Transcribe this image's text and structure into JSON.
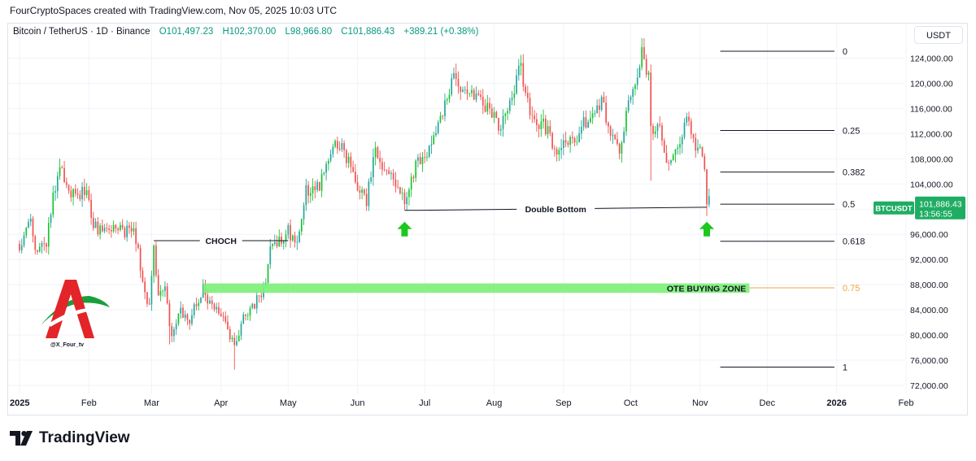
{
  "header": {
    "attribution": "FourCryptoSpaces created with TradingView.com, Nov 05, 2025 10:03 UTC",
    "symbol": "Bitcoin / TetherUS · 1D · Binance",
    "ohlc": {
      "o": "O101,497.23",
      "h": "H102,370.00",
      "l": "L98,966.80",
      "c": "C101,886.43",
      "change": "+389.21 (+0.38%)"
    },
    "currency_button": "USDT"
  },
  "chart_data": {
    "type": "candlestick",
    "title": "Bitcoin / TetherUS · 1D · Binance",
    "xlabel": "",
    "ylabel": "",
    "ylim": [
      72000,
      126000
    ],
    "x_range": [
      "2025-01-01",
      "2026-02-01"
    ],
    "y_ticks": [
      72000,
      76000,
      80000,
      84000,
      88000,
      92000,
      96000,
      100000,
      104000,
      108000,
      112000,
      116000,
      120000,
      124000
    ],
    "y_tick_labels": [
      "72,000.00",
      "76,000.00",
      "80,000.00",
      "84,000.00",
      "88,000.00",
      "92,000.00",
      "96,000.00",
      "100,000.00",
      "104,000.00",
      "108,000.00",
      "112,000.00",
      "116,000.00",
      "120,000.00",
      "124,000.00"
    ],
    "x_ticks": [
      {
        "date": "2025-01-01",
        "label": "2025"
      },
      {
        "date": "2025-02-01",
        "label": "Feb"
      },
      {
        "date": "2025-03-01",
        "label": "Mar"
      },
      {
        "date": "2025-04-01",
        "label": "Apr"
      },
      {
        "date": "2025-05-01",
        "label": "May"
      },
      {
        "date": "2025-06-01",
        "label": "Jun"
      },
      {
        "date": "2025-07-01",
        "label": "Jul"
      },
      {
        "date": "2025-08-01",
        "label": "Aug"
      },
      {
        "date": "2025-09-01",
        "label": "Sep"
      },
      {
        "date": "2025-10-01",
        "label": "Oct"
      },
      {
        "date": "2025-11-01",
        "label": "Nov"
      },
      {
        "date": "2025-12-01",
        "label": "Dec"
      },
      {
        "date": "2026-01-01",
        "label": "2026"
      },
      {
        "date": "2026-02-01",
        "label": "Feb"
      }
    ],
    "price_path": [
      [
        "2025-01-01",
        94500
      ],
      [
        "2025-01-06",
        98000
      ],
      [
        "2025-01-09",
        92800
      ],
      [
        "2025-01-13",
        94500
      ],
      [
        "2025-01-17",
        104000
      ],
      [
        "2025-01-20",
        106500
      ],
      [
        "2025-01-23",
        103000
      ],
      [
        "2025-01-27",
        101500
      ],
      [
        "2025-01-31",
        103500
      ],
      [
        "2025-02-03",
        97500
      ],
      [
        "2025-02-07",
        96500
      ],
      [
        "2025-02-12",
        97500
      ],
      [
        "2025-02-17",
        96000
      ],
      [
        "2025-02-21",
        98000
      ],
      [
        "2025-02-25",
        88000
      ],
      [
        "2025-02-28",
        84000
      ],
      [
        "2025-03-02",
        94500
      ],
      [
        "2025-03-04",
        86000
      ],
      [
        "2025-03-07",
        88500
      ],
      [
        "2025-03-10",
        79000
      ],
      [
        "2025-03-14",
        84000
      ],
      [
        "2025-03-18",
        82500
      ],
      [
        "2025-03-24",
        87500
      ],
      [
        "2025-03-28",
        84000
      ],
      [
        "2025-04-02",
        83000
      ],
      [
        "2025-04-07",
        78000
      ],
      [
        "2025-04-10",
        82000
      ],
      [
        "2025-04-15",
        84500
      ],
      [
        "2025-04-21",
        87500
      ],
      [
        "2025-04-23",
        93500
      ],
      [
        "2025-05-01",
        96500
      ],
      [
        "2025-05-05",
        94500
      ],
      [
        "2025-05-09",
        103000
      ],
      [
        "2025-05-15",
        103500
      ],
      [
        "2025-05-22",
        111000
      ],
      [
        "2025-05-26",
        109500
      ],
      [
        "2025-05-31",
        104000
      ],
      [
        "2025-06-05",
        101500
      ],
      [
        "2025-06-09",
        110000
      ],
      [
        "2025-06-13",
        105500
      ],
      [
        "2025-06-17",
        104500
      ],
      [
        "2025-06-22",
        100800
      ],
      [
        "2025-06-27",
        107000
      ],
      [
        "2025-07-03",
        109000
      ],
      [
        "2025-07-10",
        116500
      ],
      [
        "2025-07-14",
        121000
      ],
      [
        "2025-07-18",
        118500
      ],
      [
        "2025-07-24",
        118200
      ],
      [
        "2025-07-31",
        115500
      ],
      [
        "2025-08-03",
        113000
      ],
      [
        "2025-08-08",
        117000
      ],
      [
        "2025-08-13",
        123500
      ],
      [
        "2025-08-15",
        117500
      ],
      [
        "2025-08-20",
        114000
      ],
      [
        "2025-08-24",
        113000
      ],
      [
        "2025-08-29",
        108500
      ],
      [
        "2025-09-02",
        111000
      ],
      [
        "2025-09-07",
        111500
      ],
      [
        "2025-09-13",
        115500
      ],
      [
        "2025-09-18",
        116800
      ],
      [
        "2025-09-22",
        112500
      ],
      [
        "2025-09-26",
        109500
      ],
      [
        "2025-10-01",
        118000
      ],
      [
        "2025-10-06",
        124800
      ],
      [
        "2025-10-09",
        121500
      ],
      [
        "2025-10-10",
        112500
      ],
      [
        "2025-10-14",
        113000
      ],
      [
        "2025-10-17",
        107500
      ],
      [
        "2025-10-21",
        108500
      ],
      [
        "2025-10-26",
        114500
      ],
      [
        "2025-10-28",
        113000
      ],
      [
        "2025-10-30",
        110000
      ],
      [
        "2025-11-01",
        110500
      ],
      [
        "2025-11-03",
        107000
      ],
      [
        "2025-11-04",
        101500
      ],
      [
        "2025-11-05",
        101886.43
      ]
    ],
    "last_price_label": "BTCUSDT",
    "last_price": "101,886.43",
    "countdown": "13:56:55",
    "annotations": {
      "choch": {
        "label": "CHOCH",
        "price": 95000,
        "from": "2025-03-02",
        "to": "2025-05-01"
      },
      "double_bottom": {
        "label": "Double Bottom",
        "price_from": 99800,
        "price_to": 100300,
        "from": "2025-06-22",
        "to": "2025-11-04"
      },
      "ote_zone": {
        "label": "OTE BUYING ZONE",
        "price_top": 88200,
        "price_bottom": 86700,
        "from": "2025-03-24",
        "to": "2025-11-23"
      }
    },
    "fib_levels": [
      {
        "label": "0",
        "price": 125100
      },
      {
        "label": "0.25",
        "price": 112500
      },
      {
        "label": "0.382",
        "price": 105900
      },
      {
        "label": "0.5",
        "price": 100800
      },
      {
        "label": "0.618",
        "price": 94900
      },
      {
        "label": "0.75",
        "price": 87500
      },
      {
        "label": "1",
        "price": 74900
      }
    ],
    "fib_from": "2025-11-10",
    "fib_to": "2025-12-31",
    "arrows": [
      "2025-06-22",
      "2025-11-04"
    ],
    "colors": {
      "up": "#26a69a",
      "up_bright": "#18c430",
      "down": "#ef5350",
      "zone": "#7ef07a",
      "fib_075": "#f2a73b",
      "arrow": "#1ec71e",
      "badge": "#1fad63",
      "grid": "#f0f3fa"
    }
  },
  "watermark_handle": "@X_Four_tv",
  "footer": {
    "brand": "TradingView"
  }
}
